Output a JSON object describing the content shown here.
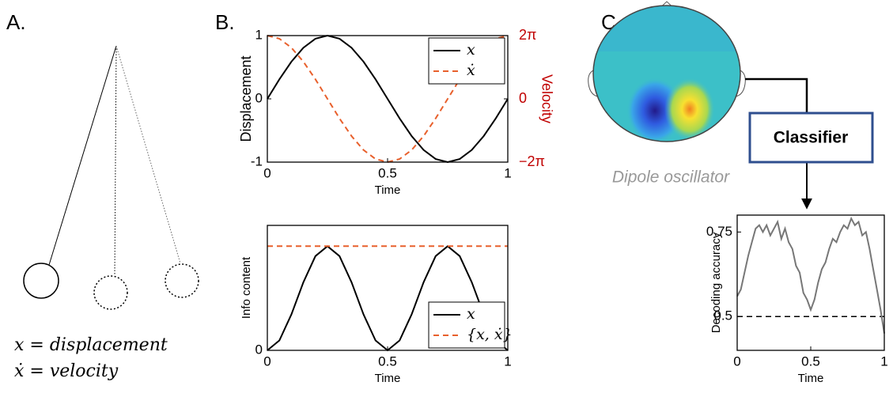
{
  "panel_labels": [
    "A.",
    "B.",
    "C."
  ],
  "pendulum": {
    "formula_1": "x = displacement",
    "formula_2": "ẋ = velocity"
  },
  "topomap_label": "Dipole oscillator",
  "classifier_label": "Classifier",
  "chart_data": [
    {
      "type": "line",
      "x_label": "Time",
      "y_label": "Displacement",
      "y2_label": "Velocity",
      "x": [
        0,
        0.05,
        0.1,
        0.15,
        0.2,
        0.25,
        0.3,
        0.35,
        0.4,
        0.45,
        0.5,
        0.55,
        0.6,
        0.65,
        0.7,
        0.75,
        0.8,
        0.85,
        0.9,
        0.95,
        1
      ],
      "series": [
        {
          "name": "x",
          "color": "#000000",
          "dash": false,
          "values": [
            0,
            0.309,
            0.588,
            0.809,
            0.951,
            1,
            0.951,
            0.809,
            0.588,
            0.309,
            0,
            -0.309,
            -0.588,
            -0.809,
            -0.951,
            -1,
            -0.951,
            -0.809,
            -0.588,
            -0.309,
            0
          ]
        },
        {
          "name": "ẋ",
          "color": "#e8602c",
          "dash": true,
          "axis": "y2",
          "values": [
            6.283,
            5.976,
            5.083,
            3.693,
            1.942,
            0,
            -1.942,
            -3.693,
            -5.083,
            -5.976,
            -6.283,
            -5.976,
            -5.083,
            -3.693,
            -1.942,
            0,
            1.942,
            3.693,
            5.083,
            5.976,
            6.283
          ]
        }
      ],
      "xlim": [
        0,
        1
      ],
      "xticks": [
        0,
        0.5,
        1
      ],
      "ylim": [
        -1,
        1
      ],
      "yticks": [
        -1,
        0,
        1
      ],
      "y2lim": [
        -6.283,
        6.283
      ],
      "y2ticks": [
        {
          "value": -6.283,
          "label": "−2π"
        },
        0,
        {
          "value": 6.283,
          "label": "2π"
        }
      ],
      "y2_color": "#c00000",
      "legend": "upper right"
    },
    {
      "type": "line",
      "x_label": "Time",
      "y_label": "Info content",
      "x": [
        0,
        0.05,
        0.1,
        0.15,
        0.2,
        0.25,
        0.3,
        0.35,
        0.4,
        0.45,
        0.5,
        0.55,
        0.6,
        0.65,
        0.7,
        0.75,
        0.8,
        0.85,
        0.9,
        0.95,
        1
      ],
      "series": [
        {
          "name": "x",
          "color": "#000000",
          "dash": false,
          "values": [
            0,
            0.095,
            0.345,
            0.655,
            0.905,
            1,
            0.905,
            0.655,
            0.345,
            0.095,
            0,
            0.095,
            0.345,
            0.655,
            0.905,
            1,
            0.905,
            0.655,
            0.345,
            0.095,
            0
          ]
        },
        {
          "name": "{x, ẋ}",
          "color": "#e8602c",
          "dash": true,
          "values": [
            1,
            1,
            1,
            1,
            1,
            1,
            1,
            1,
            1,
            1,
            1,
            1,
            1,
            1,
            1,
            1,
            1,
            1,
            1,
            1,
            1
          ]
        }
      ],
      "xlim": [
        0,
        1
      ],
      "xticks": [
        0,
        0.5,
        1
      ],
      "ylim": [
        0,
        1.2
      ],
      "yticks": [
        0
      ],
      "legend": "lower right"
    },
    {
      "type": "line",
      "x_label": "Time",
      "y_label": "Decoding accuracy",
      "x": [
        0,
        0.025,
        0.05,
        0.075,
        0.1,
        0.125,
        0.15,
        0.175,
        0.2,
        0.225,
        0.25,
        0.275,
        0.3,
        0.325,
        0.35,
        0.375,
        0.4,
        0.425,
        0.45,
        0.475,
        0.5,
        0.525,
        0.55,
        0.575,
        0.6,
        0.625,
        0.65,
        0.675,
        0.7,
        0.725,
        0.75,
        0.775,
        0.8,
        0.825,
        0.85,
        0.875,
        0.9,
        0.925,
        0.95,
        0.975,
        1
      ],
      "series": [
        {
          "color": "#777777",
          "dash": false,
          "values": [
            0.56,
            0.58,
            0.63,
            0.68,
            0.72,
            0.76,
            0.77,
            0.75,
            0.77,
            0.74,
            0.76,
            0.78,
            0.73,
            0.76,
            0.72,
            0.7,
            0.65,
            0.63,
            0.57,
            0.55,
            0.52,
            0.55,
            0.6,
            0.64,
            0.66,
            0.7,
            0.73,
            0.72,
            0.75,
            0.77,
            0.76,
            0.79,
            0.77,
            0.78,
            0.74,
            0.75,
            0.7,
            0.64,
            0.58,
            0.52,
            0.45
          ]
        }
      ],
      "reference_line": 0.5,
      "xlim": [
        0,
        1
      ],
      "xticks": [
        0,
        0.5,
        1
      ],
      "ylim": [
        0.4,
        0.8
      ],
      "yticks": [
        0.5,
        0.75
      ]
    }
  ]
}
